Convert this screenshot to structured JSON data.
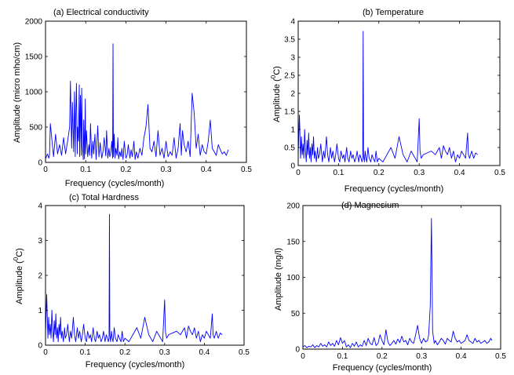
{
  "chart_data": [
    {
      "type": "line",
      "title": "(a) Electrical conductivity",
      "xlabel": "Frequency (cycles/month)",
      "ylabel": "Amplitude (micro mho/cm)",
      "xlim": [
        0,
        0.5
      ],
      "ylim": [
        0,
        2000
      ],
      "xticks": [
        0,
        0.1,
        0.2,
        0.3,
        0.4,
        0.5
      ],
      "yticks": [
        0,
        500,
        1000,
        1500,
        2000
      ],
      "xtick_labels": [
        "0",
        "0.1",
        "0.2",
        "0.3",
        "0.4",
        "0.5"
      ],
      "ytick_labels": [
        "0",
        "500",
        "1000",
        "1500",
        "2000"
      ],
      "grid": false,
      "color": "#0000ff",
      "series": [
        {
          "x": [
            0.0,
            0.005,
            0.008,
            0.01,
            0.012,
            0.02,
            0.025,
            0.03,
            0.035,
            0.04,
            0.045,
            0.05,
            0.055,
            0.06,
            0.062,
            0.065,
            0.067,
            0.07,
            0.072,
            0.074,
            0.075,
            0.077,
            0.079,
            0.08,
            0.082,
            0.084,
            0.085,
            0.087,
            0.089,
            0.09,
            0.092,
            0.094,
            0.095,
            0.097,
            0.099,
            0.1,
            0.102,
            0.105,
            0.108,
            0.11,
            0.112,
            0.115,
            0.118,
            0.12,
            0.123,
            0.126,
            0.13,
            0.133,
            0.136,
            0.14,
            0.143,
            0.146,
            0.15,
            0.152,
            0.155,
            0.158,
            0.16,
            0.162,
            0.165,
            0.167,
            0.168,
            0.169,
            0.171,
            0.173,
            0.175,
            0.178,
            0.18,
            0.182,
            0.185,
            0.188,
            0.19,
            0.193,
            0.196,
            0.2,
            0.203,
            0.206,
            0.21,
            0.213,
            0.216,
            0.22,
            0.223,
            0.226,
            0.23,
            0.235,
            0.24,
            0.245,
            0.25,
            0.255,
            0.26,
            0.265,
            0.27,
            0.275,
            0.28,
            0.285,
            0.29,
            0.295,
            0.3,
            0.305,
            0.31,
            0.315,
            0.32,
            0.325,
            0.33,
            0.335,
            0.338,
            0.341,
            0.345,
            0.35,
            0.355,
            0.36,
            0.365,
            0.37,
            0.375,
            0.38,
            0.385,
            0.39,
            0.395,
            0.4,
            0.405,
            0.41,
            0.415,
            0.42,
            0.425,
            0.43,
            0.435,
            0.44,
            0.445,
            0.45,
            0.455
          ],
          "y": [
            50,
            120,
            60,
            100,
            550,
            80,
            400,
            120,
            250,
            100,
            350,
            120,
            300,
            500,
            1150,
            200,
            850,
            150,
            1000,
            80,
            600,
            1120,
            120,
            500,
            300,
            1100,
            80,
            950,
            100,
            1050,
            200,
            40,
            600,
            50,
            900,
            120,
            450,
            80,
            250,
            100,
            550,
            60,
            300,
            120,
            400,
            40,
            520,
            80,
            280,
            60,
            150,
            350,
            90,
            450,
            60,
            200,
            80,
            120,
            300,
            60,
            1680,
            80,
            400,
            60,
            200,
            100,
            350,
            50,
            150,
            80,
            200,
            40,
            300,
            60,
            100,
            250,
            60,
            180,
            80,
            300,
            40,
            150,
            60,
            200,
            100,
            350,
            500,
            820,
            200,
            150,
            300,
            80,
            450,
            100,
            200,
            60,
            300,
            80,
            150,
            100,
            350,
            60,
            200,
            550,
            100,
            450,
            250,
            150,
            300,
            80,
            980,
            700,
            200,
            400,
            100,
            250,
            150,
            120,
            300,
            600,
            200,
            150,
            100,
            250,
            180,
            120,
            150,
            100,
            180
          ]
        }
      ]
    },
    {
      "type": "line",
      "title": "(b) Temperature",
      "xlabel": "Frequency (cycles/month)",
      "ylabel": "Amplitude (",
      "ylabel_sup": "0",
      "ylabel_unit": "C)",
      "xlim": [
        0,
        0.5
      ],
      "ylim": [
        0,
        4
      ],
      "xticks": [
        0,
        0.1,
        0.2,
        0.3,
        0.4,
        0.5
      ],
      "yticks": [
        0,
        0.5,
        1,
        1.5,
        2,
        2.5,
        3,
        3.5,
        4
      ],
      "xtick_labels": [
        "0",
        "0.1",
        "0.2",
        "0.3",
        "0.4",
        "0.5"
      ],
      "ytick_labels": [
        "0",
        "0.5",
        "1",
        "1.5",
        "2",
        "2.5",
        "3",
        "3.5",
        "4"
      ],
      "grid": false,
      "color": "#0000ff",
      "series": [
        {
          "x": [
            0.0,
            0.003,
            0.006,
            0.008,
            0.01,
            0.012,
            0.014,
            0.016,
            0.018,
            0.02,
            0.022,
            0.024,
            0.026,
            0.028,
            0.03,
            0.032,
            0.034,
            0.036,
            0.038,
            0.04,
            0.042,
            0.045,
            0.048,
            0.05,
            0.053,
            0.056,
            0.06,
            0.063,
            0.066,
            0.07,
            0.073,
            0.076,
            0.08,
            0.083,
            0.086,
            0.09,
            0.093,
            0.096,
            0.1,
            0.103,
            0.106,
            0.11,
            0.113,
            0.116,
            0.12,
            0.123,
            0.126,
            0.13,
            0.133,
            0.136,
            0.14,
            0.143,
            0.146,
            0.15,
            0.153,
            0.156,
            0.158,
            0.16,
            0.161,
            0.162,
            0.164,
            0.166,
            0.168,
            0.17,
            0.173,
            0.176,
            0.18,
            0.183,
            0.186,
            0.19,
            0.193,
            0.196,
            0.2,
            0.21,
            0.22,
            0.23,
            0.24,
            0.25,
            0.26,
            0.27,
            0.28,
            0.29,
            0.295,
            0.3,
            0.302,
            0.305,
            0.31,
            0.32,
            0.33,
            0.34,
            0.35,
            0.355,
            0.36,
            0.365,
            0.37,
            0.375,
            0.38,
            0.385,
            0.39,
            0.395,
            0.4,
            0.405,
            0.41,
            0.415,
            0.42,
            0.422,
            0.425,
            0.43,
            0.435,
            0.44,
            0.445
          ],
          "y": [
            0.3,
            1.4,
            0.2,
            0.8,
            0.3,
            0.6,
            0.2,
            1.0,
            0.4,
            0.1,
            0.7,
            0.3,
            0.9,
            0.2,
            0.5,
            0.1,
            0.6,
            0.3,
            0.8,
            0.2,
            0.4,
            0.1,
            0.5,
            0.2,
            0.3,
            0.6,
            0.1,
            0.4,
            0.2,
            0.8,
            0.3,
            0.1,
            0.5,
            0.2,
            0.4,
            0.1,
            0.3,
            0.6,
            0.2,
            0.1,
            0.4,
            0.2,
            0.3,
            0.1,
            0.5,
            0.2,
            0.1,
            0.4,
            0.2,
            0.3,
            0.1,
            0.2,
            0.4,
            0.1,
            0.3,
            0.2,
            0.1,
            0.2,
            3.72,
            0.3,
            0.1,
            0.4,
            0.2,
            0.1,
            0.5,
            0.2,
            0.1,
            0.3,
            0.2,
            0.1,
            0.4,
            0.1,
            0.2,
            0.1,
            0.3,
            0.5,
            0.2,
            0.8,
            0.3,
            0.1,
            0.4,
            0.2,
            0.1,
            1.3,
            0.4,
            0.2,
            0.3,
            0.35,
            0.4,
            0.3,
            0.5,
            0.2,
            0.55,
            0.4,
            0.3,
            0.5,
            0.2,
            0.4,
            0.1,
            0.3,
            0.2,
            0.4,
            0.3,
            0.2,
            0.9,
            0.3,
            0.2,
            0.4,
            0.2,
            0.35,
            0.3
          ]
        }
      ]
    },
    {
      "type": "line",
      "title": "(c) Total Hardness",
      "xlabel": "Frequency (cycles/month)",
      "ylabel": "Amplitude (",
      "ylabel_sup": "0",
      "ylabel_unit": "C)",
      "xlim": [
        0,
        0.5
      ],
      "ylim": [
        0,
        4
      ],
      "xticks": [
        0,
        0.1,
        0.2,
        0.3,
        0.4,
        0.5
      ],
      "yticks": [
        0,
        1,
        2,
        3,
        4
      ],
      "xtick_labels": [
        "0",
        "0.1",
        "0.2",
        "0.3",
        "0.4",
        "0.5"
      ],
      "ytick_labels": [
        "0",
        "1",
        "2",
        "3",
        "4"
      ],
      "grid": false,
      "color": "#0000ff",
      "series": [
        {
          "x": [
            0.0,
            0.003,
            0.006,
            0.008,
            0.01,
            0.012,
            0.014,
            0.016,
            0.018,
            0.02,
            0.022,
            0.024,
            0.026,
            0.028,
            0.03,
            0.032,
            0.034,
            0.036,
            0.038,
            0.04,
            0.042,
            0.045,
            0.048,
            0.05,
            0.053,
            0.056,
            0.06,
            0.063,
            0.066,
            0.07,
            0.073,
            0.076,
            0.08,
            0.083,
            0.086,
            0.09,
            0.093,
            0.096,
            0.1,
            0.103,
            0.106,
            0.11,
            0.113,
            0.116,
            0.12,
            0.123,
            0.126,
            0.13,
            0.133,
            0.136,
            0.14,
            0.143,
            0.146,
            0.15,
            0.153,
            0.156,
            0.158,
            0.16,
            0.161,
            0.162,
            0.164,
            0.166,
            0.168,
            0.17,
            0.173,
            0.176,
            0.18,
            0.183,
            0.186,
            0.19,
            0.193,
            0.196,
            0.2,
            0.21,
            0.22,
            0.23,
            0.24,
            0.25,
            0.26,
            0.27,
            0.28,
            0.29,
            0.295,
            0.3,
            0.302,
            0.305,
            0.31,
            0.32,
            0.33,
            0.34,
            0.35,
            0.355,
            0.36,
            0.365,
            0.37,
            0.375,
            0.38,
            0.385,
            0.39,
            0.395,
            0.4,
            0.405,
            0.41,
            0.415,
            0.42,
            0.422,
            0.425,
            0.43,
            0.435,
            0.44,
            0.445
          ],
          "y": [
            0.3,
            1.45,
            0.2,
            0.8,
            0.3,
            0.6,
            0.2,
            1.0,
            0.4,
            0.1,
            0.7,
            0.3,
            0.9,
            0.2,
            0.5,
            0.1,
            0.6,
            0.3,
            0.8,
            0.2,
            0.4,
            0.1,
            0.5,
            0.2,
            0.3,
            0.6,
            0.1,
            0.4,
            0.2,
            0.8,
            0.3,
            0.1,
            0.5,
            0.2,
            0.4,
            0.1,
            0.3,
            0.6,
            0.2,
            0.1,
            0.4,
            0.2,
            0.3,
            0.1,
            0.5,
            0.2,
            0.1,
            0.4,
            0.2,
            0.3,
            0.1,
            0.2,
            0.4,
            0.1,
            0.3,
            0.2,
            0.1,
            0.2,
            3.75,
            0.3,
            0.1,
            0.4,
            0.2,
            0.1,
            0.5,
            0.2,
            0.1,
            0.3,
            0.2,
            0.1,
            0.4,
            0.1,
            0.2,
            0.1,
            0.3,
            0.5,
            0.2,
            0.8,
            0.3,
            0.1,
            0.4,
            0.2,
            0.1,
            1.3,
            0.4,
            0.2,
            0.3,
            0.35,
            0.4,
            0.3,
            0.5,
            0.2,
            0.55,
            0.4,
            0.3,
            0.5,
            0.2,
            0.4,
            0.1,
            0.3,
            0.2,
            0.4,
            0.3,
            0.2,
            0.9,
            0.3,
            0.2,
            0.4,
            0.2,
            0.35,
            0.3
          ]
        }
      ]
    },
    {
      "type": "line",
      "title": "(d) Magnesium",
      "xlabel": "Frequency (cycles/month)",
      "ylabel": "Amplitude (mg/l)",
      "xlim": [
        0,
        0.5
      ],
      "ylim": [
        0,
        200
      ],
      "xticks": [
        0,
        0.1,
        0.2,
        0.3,
        0.4,
        0.5
      ],
      "yticks": [
        0,
        50,
        100,
        150,
        200
      ],
      "xtick_labels": [
        "0",
        "0.1",
        "0.2",
        "0.3",
        "0.4",
        "0.5"
      ],
      "ytick_labels": [
        "0",
        "50",
        "100",
        "150",
        "200"
      ],
      "grid": false,
      "color": "#0000ff",
      "series": [
        {
          "x": [
            0.0,
            0.005,
            0.01,
            0.015,
            0.02,
            0.025,
            0.03,
            0.035,
            0.04,
            0.045,
            0.05,
            0.055,
            0.06,
            0.065,
            0.07,
            0.075,
            0.08,
            0.085,
            0.09,
            0.095,
            0.1,
            0.105,
            0.11,
            0.115,
            0.12,
            0.125,
            0.13,
            0.135,
            0.14,
            0.145,
            0.15,
            0.155,
            0.16,
            0.165,
            0.17,
            0.175,
            0.18,
            0.185,
            0.19,
            0.195,
            0.2,
            0.205,
            0.21,
            0.215,
            0.22,
            0.225,
            0.23,
            0.235,
            0.24,
            0.245,
            0.25,
            0.255,
            0.26,
            0.265,
            0.27,
            0.275,
            0.28,
            0.285,
            0.29,
            0.295,
            0.3,
            0.305,
            0.31,
            0.315,
            0.318,
            0.322,
            0.325,
            0.328,
            0.332,
            0.335,
            0.34,
            0.345,
            0.35,
            0.355,
            0.36,
            0.365,
            0.37,
            0.375,
            0.38,
            0.385,
            0.39,
            0.395,
            0.4,
            0.405,
            0.41,
            0.415,
            0.42,
            0.425,
            0.43,
            0.435,
            0.44,
            0.445,
            0.45,
            0.455,
            0.46,
            0.465,
            0.47,
            0.475,
            0.478
          ],
          "y": [
            3,
            5,
            2,
            4,
            3,
            6,
            2,
            5,
            3,
            8,
            4,
            6,
            3,
            10,
            5,
            8,
            4,
            12,
            6,
            16,
            8,
            12,
            3,
            6,
            2,
            8,
            4,
            10,
            3,
            6,
            4,
            12,
            5,
            15,
            8,
            6,
            16,
            5,
            8,
            20,
            12,
            6,
            27,
            10,
            5,
            8,
            12,
            7,
            14,
            9,
            18,
            10,
            12,
            6,
            15,
            10,
            8,
            20,
            33,
            15,
            8,
            15,
            10,
            12,
            20,
            60,
            182,
            25,
            8,
            12,
            6,
            10,
            15,
            12,
            7,
            15,
            12,
            10,
            25,
            15,
            10,
            12,
            8,
            10,
            12,
            20,
            12,
            10,
            8,
            15,
            10,
            12,
            8,
            10,
            12,
            8,
            10,
            15,
            12
          ]
        }
      ]
    }
  ]
}
